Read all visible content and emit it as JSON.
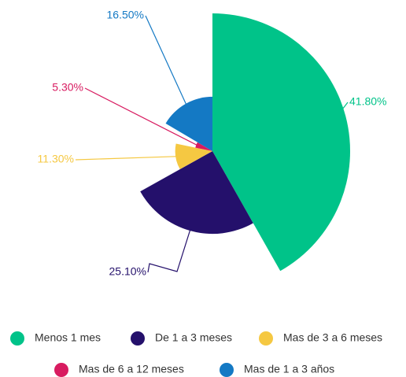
{
  "chart_data": {
    "type": "pie",
    "categories": [
      "Menos 1 mes",
      "De 1 a 3 meses",
      "Mas de 3 a 6 meses",
      "Mas de 6 a 12 meses",
      "Mas de 1 a 3 años"
    ],
    "values": [
      41.8,
      25.1,
      11.3,
      5.3,
      16.5
    ],
    "value_labels": [
      "41.80%",
      "25.10%",
      "11.30%",
      "5.30%",
      "16.50%"
    ],
    "colors": [
      "#00c389",
      "#24106b",
      "#f5c842",
      "#d81b60",
      "#1479c4"
    ],
    "legend": "bottom"
  }
}
